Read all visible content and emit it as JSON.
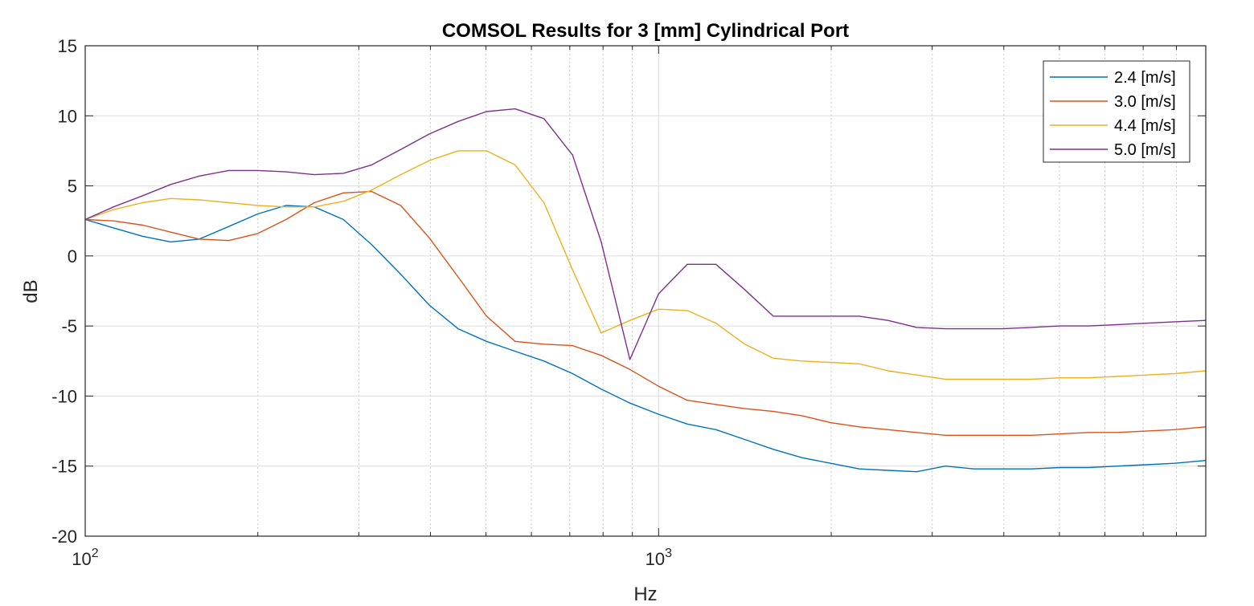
{
  "chart_data": {
    "type": "line",
    "title": "COMSOL Results for 3 [mm] Cylindrical Port",
    "xlabel": "Hz",
    "ylabel": "dB",
    "xscale": "log",
    "xlim": [
      100,
      9000
    ],
    "ylim": [
      -20,
      15
    ],
    "grid": true,
    "legend_position": "top-right",
    "x_tick_labels": [
      {
        "value": 100,
        "base": "10",
        "exp": "2"
      },
      {
        "value": 1000,
        "base": "10",
        "exp": "3"
      }
    ],
    "y_ticks": [
      15,
      10,
      5,
      0,
      -5,
      -10,
      -15,
      -20
    ],
    "series": [
      {
        "name": "2.4 [m/s]",
        "color": "#0072BD",
        "x": [
          100,
          112,
          126,
          141,
          158,
          178,
          200,
          224,
          251,
          282,
          316,
          355,
          398,
          447,
          501,
          562,
          631,
          708,
          794,
          891,
          1000,
          1122,
          1259,
          1413,
          1585,
          1778,
          1995,
          2239,
          2512,
          2818,
          3162,
          3548,
          3981,
          4467,
          5012,
          5623,
          6310,
          7079,
          7943,
          9000
        ],
        "y": [
          2.6,
          2.0,
          1.4,
          1.0,
          1.2,
          2.1,
          3.0,
          3.6,
          3.5,
          2.6,
          0.8,
          -1.3,
          -3.5,
          -5.2,
          -6.1,
          -6.8,
          -7.5,
          -8.4,
          -9.5,
          -10.5,
          -11.3,
          -12.0,
          -12.4,
          -13.1,
          -13.8,
          -14.4,
          -14.8,
          -15.2,
          -15.3,
          -15.4,
          -15.0,
          -15.2,
          -15.2,
          -15.2,
          -15.1,
          -15.1,
          -15.0,
          -14.9,
          -14.8,
          -14.6
        ]
      },
      {
        "name": "3.0 [m/s]",
        "color": "#D95319",
        "x": [
          100,
          112,
          126,
          141,
          158,
          178,
          200,
          224,
          251,
          282,
          316,
          355,
          398,
          447,
          501,
          562,
          631,
          708,
          794,
          891,
          1000,
          1122,
          1259,
          1413,
          1585,
          1778,
          1995,
          2239,
          2512,
          2818,
          3162,
          3548,
          3981,
          4467,
          5012,
          5623,
          6310,
          7079,
          7943,
          9000
        ],
        "y": [
          2.6,
          2.5,
          2.2,
          1.7,
          1.2,
          1.1,
          1.6,
          2.6,
          3.8,
          4.5,
          4.6,
          3.6,
          1.3,
          -1.5,
          -4.3,
          -6.1,
          -6.3,
          -6.4,
          -7.1,
          -8.1,
          -9.3,
          -10.3,
          -10.6,
          -10.9,
          -11.1,
          -11.4,
          -11.9,
          -12.2,
          -12.4,
          -12.6,
          -12.8,
          -12.8,
          -12.8,
          -12.8,
          -12.7,
          -12.6,
          -12.6,
          -12.5,
          -12.4,
          -12.2
        ]
      },
      {
        "name": "4.4 [m/s]",
        "color": "#EDB120",
        "x": [
          100,
          112,
          126,
          141,
          158,
          178,
          200,
          224,
          251,
          282,
          316,
          355,
          398,
          447,
          501,
          562,
          631,
          708,
          794,
          891,
          1000,
          1122,
          1259,
          1413,
          1585,
          1778,
          1995,
          2239,
          2512,
          2818,
          3162,
          3548,
          3981,
          4467,
          5012,
          5623,
          6310,
          7079,
          7943,
          9000
        ],
        "y": [
          2.6,
          3.3,
          3.8,
          4.1,
          4.0,
          3.8,
          3.6,
          3.5,
          3.5,
          3.9,
          4.7,
          5.8,
          6.8,
          7.5,
          7.5,
          6.5,
          3.8,
          -1.0,
          -5.5,
          -4.6,
          -3.8,
          -3.9,
          -4.8,
          -6.3,
          -7.3,
          -7.5,
          -7.6,
          -7.7,
          -8.2,
          -8.5,
          -8.8,
          -8.8,
          -8.8,
          -8.8,
          -8.7,
          -8.7,
          -8.6,
          -8.5,
          -8.4,
          -8.2
        ]
      },
      {
        "name": "5.0 [m/s]",
        "color": "#7E2F8E",
        "x": [
          100,
          112,
          126,
          141,
          158,
          178,
          200,
          224,
          251,
          282,
          316,
          355,
          398,
          447,
          501,
          562,
          631,
          708,
          794,
          891,
          1000,
          1122,
          1259,
          1413,
          1585,
          1778,
          1995,
          2239,
          2512,
          2818,
          3162,
          3548,
          3981,
          4467,
          5012,
          5623,
          6310,
          7079,
          7943,
          9000
        ],
        "y": [
          2.6,
          3.5,
          4.3,
          5.1,
          5.7,
          6.1,
          6.1,
          6.0,
          5.8,
          5.9,
          6.5,
          7.6,
          8.7,
          9.6,
          10.3,
          10.5,
          9.8,
          7.2,
          1.0,
          -7.4,
          -2.7,
          -0.6,
          -0.6,
          -2.4,
          -4.3,
          -4.3,
          -4.3,
          -4.3,
          -4.6,
          -5.1,
          -5.2,
          -5.2,
          -5.2,
          -5.1,
          -5.0,
          -5.0,
          -4.9,
          -4.8,
          -4.7,
          -4.6
        ]
      }
    ]
  }
}
